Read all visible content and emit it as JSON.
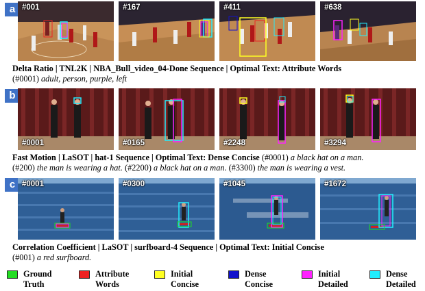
{
  "panels": [
    {
      "badge": "a",
      "frames": [
        "#001",
        "#167",
        "#411",
        "#638"
      ],
      "caption_title": "Delta Ratio | TNL2K | NBA_Bull_video_04-Done Sequence | Optimal Text: Attribute Words",
      "caption_text": [
        {
          "frame": "(#0001)",
          "text": "adult, person, purple, left"
        }
      ]
    },
    {
      "badge": "b",
      "frames": [
        "#0001",
        "#0165",
        "#2248",
        "#3294"
      ],
      "caption_title": "Fast Motion | LaSOT | hat-1 Sequence | Optimal Text: Dense Concise",
      "caption_text": [
        {
          "frame": "(#0001)",
          "text": "a black hat on a man."
        },
        {
          "frame": "(#200)",
          "text": "the man is wearing a hat."
        },
        {
          "frame": "(#2200)",
          "text": "a black hat on a man."
        },
        {
          "frame": "(#3300)",
          "text": "the man is wearing a vest."
        }
      ]
    },
    {
      "badge": "c",
      "frames": [
        "#0001",
        "#0300",
        "#1045",
        "#1672"
      ],
      "caption_title": "Correlation Coefficient | LaSOT | surfboard-4 Sequence | Optimal Text: Initial Concise",
      "caption_text": [
        {
          "frame": "(#001)",
          "text": "a red surfboard."
        }
      ]
    }
  ],
  "legend": [
    {
      "label_1": "Ground",
      "label_2": "Truth",
      "color": "#22dd22"
    },
    {
      "label_1": "Attribute",
      "label_2": "Words",
      "color": "#ee2222"
    },
    {
      "label_1": "Initial",
      "label_2": "Concise",
      "color": "#ffff22"
    },
    {
      "label_1": "Dense",
      "label_2": "Concise",
      "color": "#1111cc"
    },
    {
      "label_1": "Initial",
      "label_2": "Detailed",
      "color": "#ff22ff"
    },
    {
      "label_1": "Dense",
      "label_2": "Detailed",
      "color": "#22eeff"
    }
  ]
}
